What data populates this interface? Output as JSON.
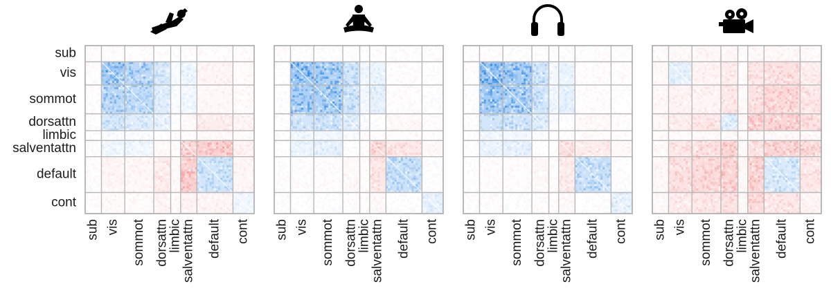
{
  "chart_data": {
    "type": "heatmap",
    "networks": [
      "sub",
      "vis",
      "sommot",
      "dorsattn",
      "limbic",
      "salventattn",
      "default",
      "cont"
    ],
    "network_sizes": [
      23,
      33,
      41,
      24,
      14,
      23,
      51,
      30
    ],
    "color_scale": {
      "negative": "#3b8fe8",
      "zero": "#ffffff",
      "positive": "#f06a6a"
    },
    "grid": true,
    "panels": [
      {
        "icon": "reclining-person-icon",
        "block_values": [
          [
            0.02,
            0.02,
            0.02,
            0.01,
            0.0,
            0.01,
            0.02,
            0.02
          ],
          [
            0.02,
            -0.6,
            -0.45,
            -0.25,
            -0.04,
            -0.1,
            0.08,
            0.04
          ],
          [
            0.02,
            -0.45,
            -0.4,
            -0.2,
            -0.03,
            -0.08,
            0.06,
            0.04
          ],
          [
            0.01,
            -0.25,
            -0.2,
            -0.15,
            0.0,
            0.05,
            0.15,
            0.08
          ],
          [
            0.0,
            -0.04,
            -0.03,
            0.0,
            0.02,
            0.03,
            0.05,
            0.03
          ],
          [
            0.01,
            -0.1,
            -0.08,
            0.05,
            0.03,
            0.35,
            0.4,
            0.1
          ],
          [
            0.02,
            0.08,
            0.06,
            0.15,
            0.05,
            0.4,
            -0.3,
            0.08
          ],
          [
            0.02,
            0.04,
            0.04,
            0.08,
            0.03,
            0.1,
            0.08,
            -0.1
          ]
        ]
      },
      {
        "icon": "meditating-person-icon",
        "block_values": [
          [
            0.02,
            0.0,
            0.0,
            0.01,
            0.0,
            0.01,
            0.01,
            0.01
          ],
          [
            0.0,
            -0.65,
            -0.55,
            -0.3,
            -0.08,
            -0.12,
            0.02,
            0.0
          ],
          [
            0.0,
            -0.55,
            -0.55,
            -0.3,
            -0.08,
            -0.15,
            0.02,
            0.0
          ],
          [
            0.01,
            -0.3,
            -0.3,
            -0.2,
            -0.03,
            0.0,
            0.05,
            0.02
          ],
          [
            0.0,
            -0.08,
            -0.08,
            -0.03,
            0.02,
            0.02,
            0.03,
            0.02
          ],
          [
            0.01,
            -0.12,
            -0.15,
            0.0,
            0.02,
            0.3,
            0.2,
            0.05
          ],
          [
            0.01,
            0.02,
            0.02,
            0.05,
            0.03,
            0.2,
            -0.35,
            0.0
          ],
          [
            0.01,
            0.0,
            0.0,
            0.02,
            0.02,
            0.05,
            0.0,
            -0.15
          ]
        ]
      },
      {
        "icon": "headphones-icon",
        "block_values": [
          [
            0.02,
            0.02,
            0.0,
            0.0,
            0.0,
            0.01,
            0.01,
            0.01
          ],
          [
            0.02,
            -0.7,
            -0.6,
            -0.3,
            -0.08,
            -0.12,
            0.02,
            0.02
          ],
          [
            0.0,
            -0.6,
            -0.55,
            -0.3,
            -0.08,
            -0.15,
            0.02,
            0.0
          ],
          [
            0.0,
            -0.3,
            -0.3,
            -0.2,
            -0.03,
            0.0,
            0.05,
            0.02
          ],
          [
            0.0,
            -0.08,
            -0.08,
            -0.03,
            0.02,
            0.02,
            0.03,
            0.02
          ],
          [
            0.01,
            -0.12,
            -0.15,
            0.0,
            0.02,
            0.25,
            0.15,
            0.05
          ],
          [
            0.01,
            0.02,
            0.02,
            0.05,
            0.03,
            0.15,
            -0.35,
            0.0
          ],
          [
            0.01,
            0.02,
            0.0,
            0.02,
            0.02,
            0.05,
            0.0,
            -0.15
          ]
        ]
      },
      {
        "icon": "movie-camera-icon",
        "block_values": [
          [
            0.04,
            0.05,
            0.06,
            0.06,
            0.03,
            0.05,
            0.06,
            0.05
          ],
          [
            0.05,
            -0.15,
            0.1,
            0.15,
            0.03,
            0.2,
            0.25,
            0.15
          ],
          [
            0.06,
            0.1,
            0.1,
            0.2,
            0.04,
            0.25,
            0.3,
            0.2
          ],
          [
            0.06,
            0.15,
            0.2,
            -0.2,
            0.05,
            0.35,
            0.35,
            0.25
          ],
          [
            0.03,
            0.03,
            0.04,
            0.05,
            0.02,
            0.05,
            0.06,
            0.05
          ],
          [
            0.05,
            0.2,
            0.25,
            0.35,
            0.05,
            0.25,
            0.35,
            0.3
          ],
          [
            0.06,
            0.25,
            0.3,
            0.35,
            0.06,
            0.35,
            -0.25,
            0.2
          ],
          [
            0.05,
            0.15,
            0.2,
            0.25,
            0.05,
            0.3,
            0.2,
            0.1
          ]
        ]
      }
    ]
  }
}
